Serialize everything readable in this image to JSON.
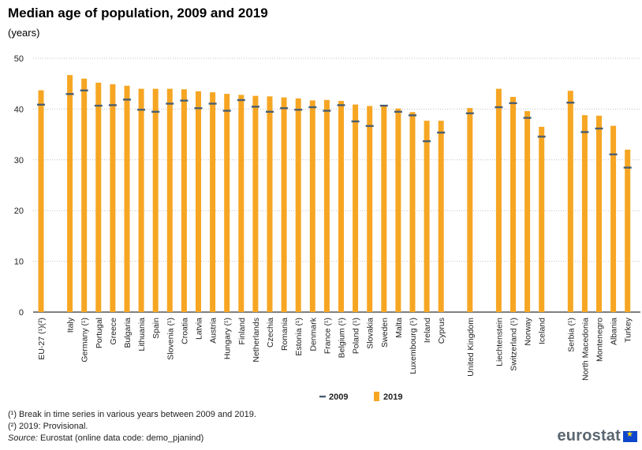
{
  "title": "Median age of population, 2009 and 2019",
  "subtitle": "(years)",
  "chart_data": {
    "type": "bar",
    "title": "Median age of population, 2009 and 2019",
    "ylabel": "",
    "xlabel": "",
    "ylim": [
      0,
      50
    ],
    "yticks": [
      "0",
      "10",
      "20",
      "30",
      "40",
      "50"
    ],
    "grid": true,
    "legend_position": "bottom",
    "groups": [
      [
        "EU-27 (¹)(²)"
      ],
      [
        "Italy",
        "Germany (¹)",
        "Portugal",
        "Greece",
        "Bulgaria",
        "Lithuania",
        "Spain",
        "Slovenia (¹)",
        "Croatia",
        "Latvia",
        "Austria",
        "Hungary (¹)",
        "Finland",
        "Netherlands",
        "Czechia",
        "Romania",
        "Estonia (¹)",
        "Denmark",
        "France (¹)",
        "Belgium (¹)",
        "Poland (¹)",
        "Slovakia",
        "Sweden",
        "Malta",
        "Luxembourg (¹)",
        "Ireland",
        "Cyprus"
      ],
      [
        "United Kingdom"
      ],
      [
        "Liechtenstein",
        "Switzerland (¹)",
        "Norway",
        "Iceland"
      ],
      [
        "Serbia (¹)",
        "North Macedonia",
        "Montenegro",
        "Albania",
        "Turkey"
      ]
    ],
    "series": [
      {
        "name": "2009",
        "marker": "dash",
        "color": "#4a5f72",
        "values": [
          40.9,
          43.0,
          43.7,
          40.7,
          40.8,
          41.9,
          39.9,
          39.5,
          41.1,
          41.7,
          40.2,
          41.1,
          39.7,
          41.8,
          40.5,
          39.5,
          40.2,
          39.9,
          40.4,
          39.7,
          40.8,
          37.6,
          36.7,
          40.7,
          39.5,
          38.8,
          33.7,
          35.4,
          39.2,
          40.4,
          41.2,
          38.3,
          34.6,
          41.3,
          35.5,
          36.2,
          31.1,
          28.5
        ]
      },
      {
        "name": "2019",
        "marker": "bar",
        "color": "#f6a623",
        "values": [
          43.7,
          46.7,
          46.0,
          45.2,
          44.9,
          44.6,
          44.0,
          44.0,
          44.0,
          43.9,
          43.5,
          43.3,
          43.0,
          42.8,
          42.6,
          42.5,
          42.3,
          42.1,
          41.7,
          41.8,
          41.6,
          40.9,
          40.6,
          40.7,
          40.1,
          39.4,
          37.7,
          37.7,
          40.2,
          44.0,
          42.4,
          39.6,
          36.5,
          43.6,
          38.8,
          38.7,
          36.7,
          32.0
        ]
      }
    ]
  },
  "legend": {
    "items": [
      {
        "label": "2009",
        "color": "#4a5f72"
      },
      {
        "label": "2019",
        "color": "#f6a623"
      }
    ]
  },
  "notes": {
    "note1": "(¹) Break in time series in various years between 2009 and 2019.",
    "note2": "(²) 2019: Provisional.",
    "source_label": "Source:",
    "source_text": " Eurostat (online data code: demo_pjanind)"
  },
  "logo": {
    "text": "eurostat"
  }
}
